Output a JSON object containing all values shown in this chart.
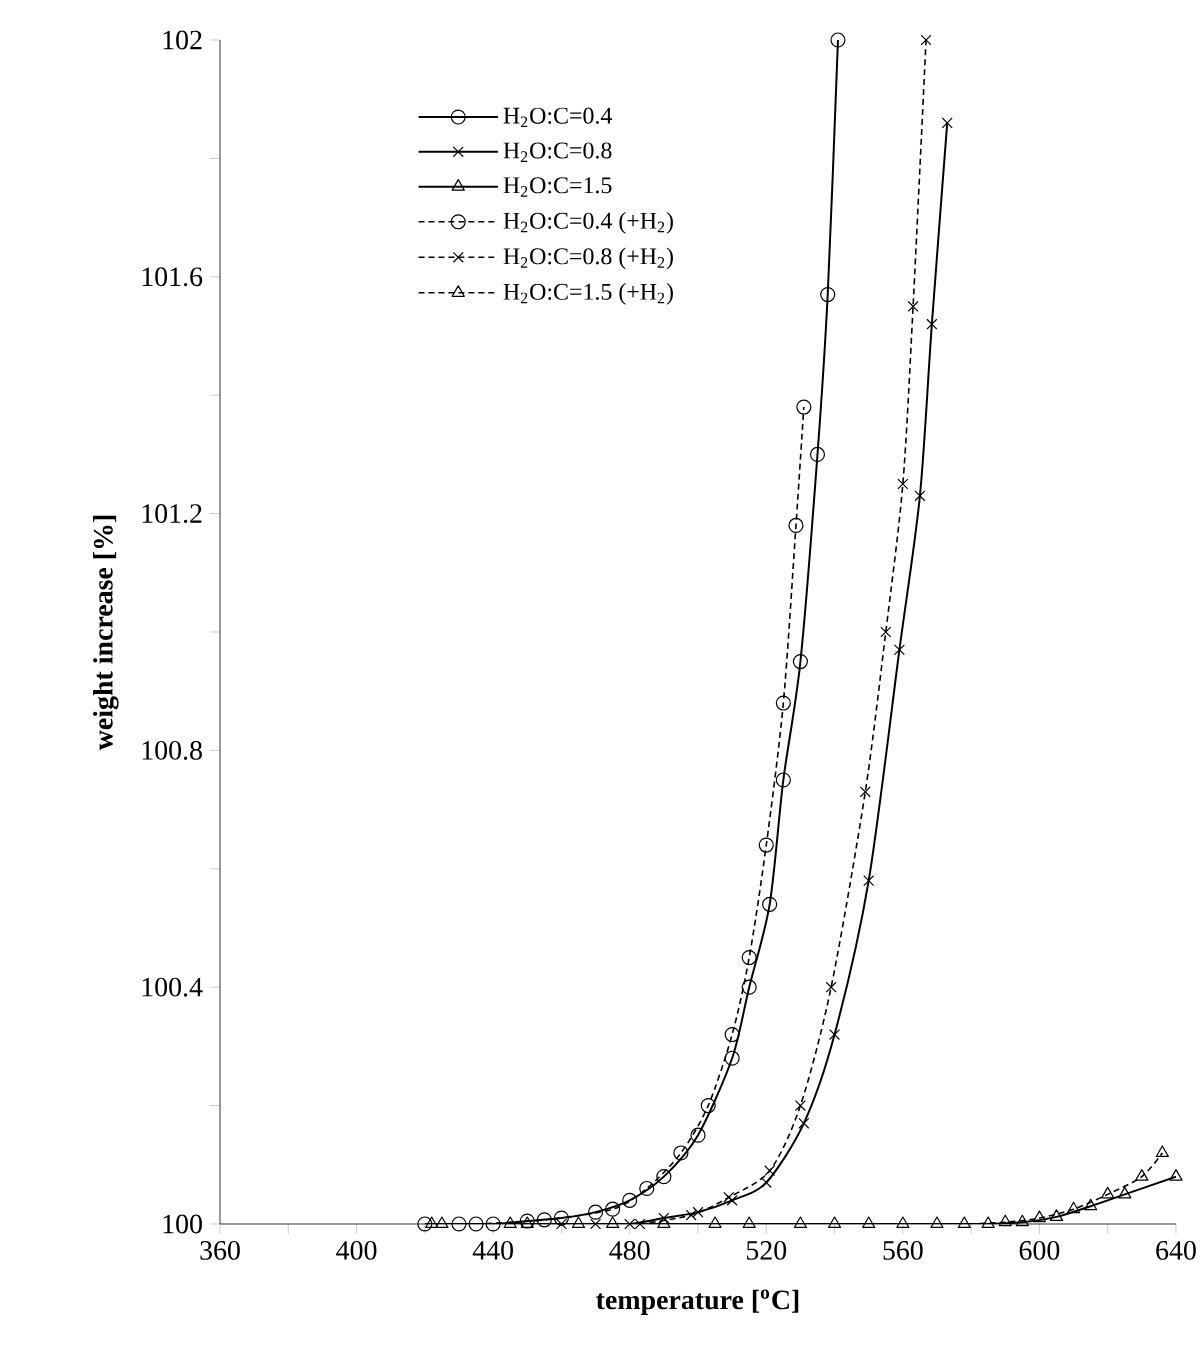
{
  "chart_data": {
    "type": "line",
    "xlabel": "temperature [$^{o}$C]",
    "ylabel": "weight increase [%]",
    "xlim": [
      360,
      640
    ],
    "ylim": [
      100,
      102
    ],
    "xticks": [
      360,
      {
        "value": 380,
        "label": null
      },
      400,
      {
        "value": 420,
        "label": null
      },
      440,
      {
        "value": 460,
        "label": null
      },
      480,
      {
        "value": 500,
        "label": null
      },
      520,
      {
        "value": 540,
        "label": null
      },
      560,
      {
        "value": 580,
        "label": null
      },
      600,
      {
        "value": 620,
        "label": null
      },
      640
    ],
    "yticks": [
      100,
      {
        "value": 100.2,
        "label": null
      },
      100.4,
      {
        "value": 100.6,
        "label": null
      },
      100.8,
      {
        "value": 101.0,
        "label": null
      },
      101.2,
      {
        "value": 101.4,
        "label": null
      },
      101.6,
      {
        "value": 101.8,
        "label": null
      },
      102
    ],
    "grid": false,
    "legend": "top left",
    "series": [
      {
        "name": "H$_{2}$O:C=0.4",
        "color": "#000000",
        "marker": "circle",
        "line_style": "solid",
        "x": [
          420,
          430,
          440,
          450,
          460,
          470,
          480,
          490,
          500,
          510,
          515,
          521,
          525,
          530,
          535,
          538,
          541
        ],
        "values": [
          100.0,
          100.0,
          100.0,
          100.005,
          100.01,
          100.02,
          100.04,
          100.08,
          100.15,
          100.28,
          100.4,
          100.54,
          100.75,
          100.95,
          101.3,
          101.57,
          102.0
        ]
      },
      {
        "name": "H$_{2}$O:C=0.8",
        "color": "#000000",
        "marker": "cross",
        "line_style": "solid",
        "x": [
          460,
          470,
          480,
          490,
          500,
          510,
          520,
          531,
          540,
          550,
          559,
          565,
          568.5,
          573
        ],
        "values": [
          100.0,
          100.0,
          100.0,
          100.01,
          100.02,
          100.04,
          100.07,
          100.17,
          100.32,
          100.58,
          100.97,
          101.23,
          101.52,
          101.86
        ]
      },
      {
        "name": "H$_{2}$O:C=1.5",
        "color": "#000000",
        "marker": "triangle",
        "line_style": "solid",
        "x": [
          425,
          450,
          475,
          505,
          530,
          550,
          570,
          585,
          595,
          605,
          615,
          625,
          640
        ],
        "values": [
          100.0,
          100.0,
          100.0,
          100.0,
          100.0,
          100.0,
          100.0,
          100.0,
          100.003,
          100.012,
          100.03,
          100.05,
          100.08
        ]
      },
      {
        "name": "H$_{2}$O:C=0.4 (+H$_{2}$)",
        "color": "#000000",
        "marker": "circle",
        "line_style": "dashed",
        "x": [
          435,
          455,
          475,
          485,
          495,
          503,
          510,
          515,
          520,
          525,
          528.7,
          531
        ],
        "values": [
          100.0,
          100.007,
          100.025,
          100.06,
          100.12,
          100.2,
          100.32,
          100.45,
          100.64,
          100.88,
          101.18,
          101.38
        ]
      },
      {
        "name": "H$_{2}$O:C=0.8 (+H$_{2}$)",
        "color": "#000000",
        "marker": "cross",
        "line_style": "dashed",
        "x": [
          483,
          498,
          509,
          521,
          530,
          539,
          549,
          555,
          560,
          563,
          566.8
        ],
        "values": [
          100.0,
          100.015,
          100.045,
          100.09,
          100.2,
          100.4,
          100.73,
          101.0,
          101.25,
          101.55,
          102.0
        ]
      },
      {
        "name": "H$_{2}$O:C=1.5 (+H$_{2}$)",
        "color": "#000000",
        "marker": "triangle",
        "line_style": "dashed",
        "x": [
          422,
          445,
          465,
          490,
          515,
          540,
          560,
          578,
          590,
          600,
          610,
          620,
          630,
          636
        ],
        "values": [
          100.0,
          100.0,
          100.0,
          100.0,
          100.0,
          100.0,
          100.0,
          100.0,
          100.003,
          100.01,
          100.025,
          100.05,
          100.08,
          100.12
        ]
      }
    ]
  }
}
